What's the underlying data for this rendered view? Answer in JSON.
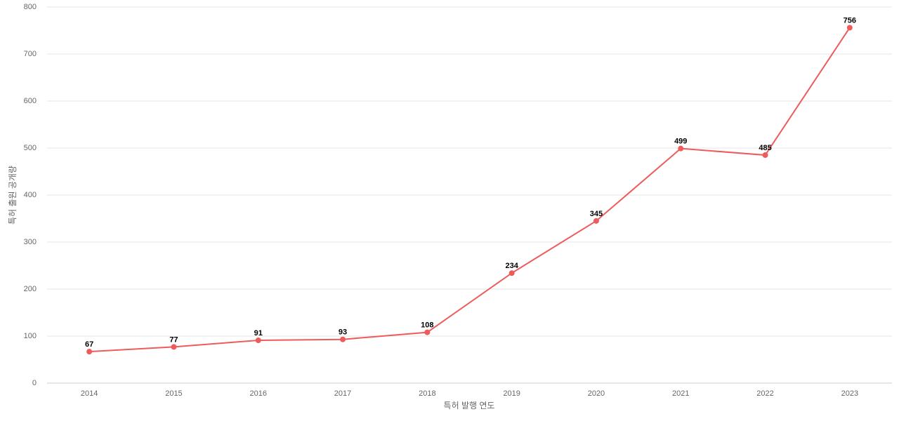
{
  "chart_data": {
    "type": "line",
    "x_label": "특허 발행 연도",
    "y_label": "특허 출원 공개량",
    "categories": [
      "2014",
      "2015",
      "2016",
      "2017",
      "2018",
      "2019",
      "2020",
      "2021",
      "2022",
      "2023"
    ],
    "values": [
      67,
      77,
      91,
      93,
      108,
      234,
      345,
      499,
      485,
      756
    ],
    "color": "#ee5b5b",
    "ylim": [
      0,
      800
    ],
    "yticks": [
      0,
      100,
      200,
      300,
      400,
      500,
      600,
      700,
      800
    ],
    "grid": true
  }
}
